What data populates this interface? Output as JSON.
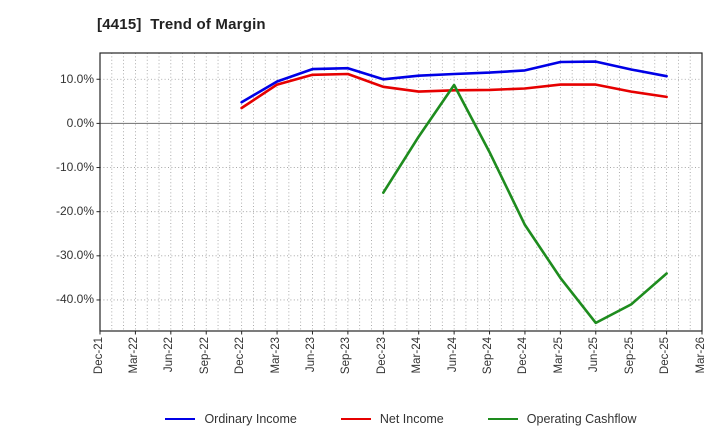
{
  "title": "[4415]  Trend of Margin",
  "chart_data": {
    "type": "line",
    "title": "[4415]  Trend of Margin",
    "x_labels": [
      "Dec-21",
      "Mar-22",
      "Jun-22",
      "Sep-22",
      "Dec-22",
      "Mar-23",
      "Jun-23",
      "Sep-23",
      "Dec-23",
      "Mar-24",
      "Jun-24",
      "Sep-24",
      "Dec-24",
      "Mar-25",
      "Jun-25",
      "Sep-25",
      "Dec-25",
      "Mar-26"
    ],
    "y_ticks": [
      10,
      0,
      -10,
      -20,
      -30,
      -40
    ],
    "y_tick_labels": [
      "10.0%",
      "0.0%",
      "-10.0%",
      "-20.0%",
      "-30.0%",
      "-40.0%"
    ],
    "y_unit": "%",
    "ylim": [
      -47,
      16
    ],
    "grid": "dotted monthly vertical lines, dotted horizontal lines every 10%, solid line at 0%",
    "legend_position": "bottom-center",
    "series": [
      {
        "name": "Ordinary Income",
        "color": "#0000e6",
        "values": [
          null,
          null,
          null,
          null,
          4.8,
          9.5,
          12.3,
          12.5,
          10.0,
          10.8,
          11.2,
          11.5,
          12.0,
          13.9,
          14.0,
          12.2,
          10.7,
          null
        ]
      },
      {
        "name": "Net Income",
        "color": "#e60000",
        "values": [
          null,
          null,
          null,
          null,
          3.5,
          8.8,
          11.0,
          11.2,
          8.3,
          7.2,
          7.5,
          7.6,
          7.9,
          8.8,
          8.8,
          7.2,
          6.0,
          null
        ]
      },
      {
        "name": "Operating Cashflow",
        "color": "#1e8c1e",
        "values": [
          null,
          null,
          null,
          null,
          null,
          null,
          null,
          null,
          -15.7,
          -3.0,
          8.7,
          -6.5,
          -23.0,
          -35.0,
          -45.2,
          -41.0,
          -34.0,
          null
        ]
      }
    ]
  },
  "legend": {
    "items": [
      {
        "label": "Ordinary Income",
        "color": "#0000e6"
      },
      {
        "label": "Net Income",
        "color": "#e60000"
      },
      {
        "label": "Operating Cashflow",
        "color": "#1e8c1e"
      }
    ]
  },
  "colors": {
    "background": "#ffffff",
    "plot_border": "#262626",
    "grid": "#999999",
    "zero_line": "#808080",
    "tick_text": "#333333",
    "title_text": "#222222"
  }
}
